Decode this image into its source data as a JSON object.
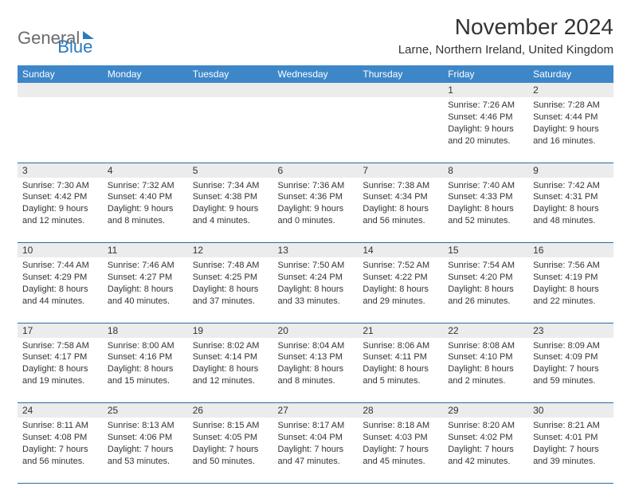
{
  "brand": {
    "part1": "General",
    "part2": "Blue"
  },
  "title": "November 2024",
  "location": "Larne, Northern Ireland, United Kingdom",
  "colors": {
    "header_bg": "#3d87c9",
    "header_text": "#ffffff",
    "daynum_bg": "#ececec",
    "rule": "#2a6aa5",
    "brand_gray": "#6b6b6b",
    "brand_blue": "#2b7bbf",
    "text": "#333333",
    "page_bg": "#ffffff"
  },
  "weekdays": [
    "Sunday",
    "Monday",
    "Tuesday",
    "Wednesday",
    "Thursday",
    "Friday",
    "Saturday"
  ],
  "weeks": [
    [
      null,
      null,
      null,
      null,
      null,
      {
        "n": "1",
        "sr": "7:26 AM",
        "ss": "4:46 PM",
        "dl": "9 hours and 20 minutes."
      },
      {
        "n": "2",
        "sr": "7:28 AM",
        "ss": "4:44 PM",
        "dl": "9 hours and 16 minutes."
      }
    ],
    [
      {
        "n": "3",
        "sr": "7:30 AM",
        "ss": "4:42 PM",
        "dl": "9 hours and 12 minutes."
      },
      {
        "n": "4",
        "sr": "7:32 AM",
        "ss": "4:40 PM",
        "dl": "9 hours and 8 minutes."
      },
      {
        "n": "5",
        "sr": "7:34 AM",
        "ss": "4:38 PM",
        "dl": "9 hours and 4 minutes."
      },
      {
        "n": "6",
        "sr": "7:36 AM",
        "ss": "4:36 PM",
        "dl": "9 hours and 0 minutes."
      },
      {
        "n": "7",
        "sr": "7:38 AM",
        "ss": "4:34 PM",
        "dl": "8 hours and 56 minutes."
      },
      {
        "n": "8",
        "sr": "7:40 AM",
        "ss": "4:33 PM",
        "dl": "8 hours and 52 minutes."
      },
      {
        "n": "9",
        "sr": "7:42 AM",
        "ss": "4:31 PM",
        "dl": "8 hours and 48 minutes."
      }
    ],
    [
      {
        "n": "10",
        "sr": "7:44 AM",
        "ss": "4:29 PM",
        "dl": "8 hours and 44 minutes."
      },
      {
        "n": "11",
        "sr": "7:46 AM",
        "ss": "4:27 PM",
        "dl": "8 hours and 40 minutes."
      },
      {
        "n": "12",
        "sr": "7:48 AM",
        "ss": "4:25 PM",
        "dl": "8 hours and 37 minutes."
      },
      {
        "n": "13",
        "sr": "7:50 AM",
        "ss": "4:24 PM",
        "dl": "8 hours and 33 minutes."
      },
      {
        "n": "14",
        "sr": "7:52 AM",
        "ss": "4:22 PM",
        "dl": "8 hours and 29 minutes."
      },
      {
        "n": "15",
        "sr": "7:54 AM",
        "ss": "4:20 PM",
        "dl": "8 hours and 26 minutes."
      },
      {
        "n": "16",
        "sr": "7:56 AM",
        "ss": "4:19 PM",
        "dl": "8 hours and 22 minutes."
      }
    ],
    [
      {
        "n": "17",
        "sr": "7:58 AM",
        "ss": "4:17 PM",
        "dl": "8 hours and 19 minutes."
      },
      {
        "n": "18",
        "sr": "8:00 AM",
        "ss": "4:16 PM",
        "dl": "8 hours and 15 minutes."
      },
      {
        "n": "19",
        "sr": "8:02 AM",
        "ss": "4:14 PM",
        "dl": "8 hours and 12 minutes."
      },
      {
        "n": "20",
        "sr": "8:04 AM",
        "ss": "4:13 PM",
        "dl": "8 hours and 8 minutes."
      },
      {
        "n": "21",
        "sr": "8:06 AM",
        "ss": "4:11 PM",
        "dl": "8 hours and 5 minutes."
      },
      {
        "n": "22",
        "sr": "8:08 AM",
        "ss": "4:10 PM",
        "dl": "8 hours and 2 minutes."
      },
      {
        "n": "23",
        "sr": "8:09 AM",
        "ss": "4:09 PM",
        "dl": "7 hours and 59 minutes."
      }
    ],
    [
      {
        "n": "24",
        "sr": "8:11 AM",
        "ss": "4:08 PM",
        "dl": "7 hours and 56 minutes."
      },
      {
        "n": "25",
        "sr": "8:13 AM",
        "ss": "4:06 PM",
        "dl": "7 hours and 53 minutes."
      },
      {
        "n": "26",
        "sr": "8:15 AM",
        "ss": "4:05 PM",
        "dl": "7 hours and 50 minutes."
      },
      {
        "n": "27",
        "sr": "8:17 AM",
        "ss": "4:04 PM",
        "dl": "7 hours and 47 minutes."
      },
      {
        "n": "28",
        "sr": "8:18 AM",
        "ss": "4:03 PM",
        "dl": "7 hours and 45 minutes."
      },
      {
        "n": "29",
        "sr": "8:20 AM",
        "ss": "4:02 PM",
        "dl": "7 hours and 42 minutes."
      },
      {
        "n": "30",
        "sr": "8:21 AM",
        "ss": "4:01 PM",
        "dl": "7 hours and 39 minutes."
      }
    ]
  ],
  "labels": {
    "sunrise": "Sunrise:",
    "sunset": "Sunset:",
    "daylight": "Daylight:"
  }
}
